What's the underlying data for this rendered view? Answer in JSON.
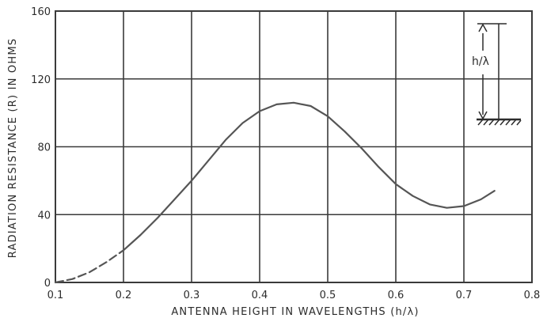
{
  "chart_data": {
    "type": "line",
    "title": "",
    "xlabel": "ANTENNA HEIGHT IN WAVELENGTHS (h/λ)",
    "ylabel": "RADIATION RESISTANCE (R) IN OHMS",
    "xlim": [
      0.1,
      0.8
    ],
    "ylim": [
      0,
      160
    ],
    "x_ticks": [
      "0.1",
      "0.2",
      "0.3",
      "0.4",
      "0.5",
      "0.6",
      "0.7",
      "0.8"
    ],
    "y_ticks": [
      "0",
      "40",
      "80",
      "120",
      "160"
    ],
    "grid": true,
    "series": [
      {
        "dashed_until_x": 0.2,
        "x": [
          0.1,
          0.125,
          0.15,
          0.175,
          0.2,
          0.225,
          0.25,
          0.275,
          0.3,
          0.325,
          0.35,
          0.375,
          0.4,
          0.425,
          0.45,
          0.475,
          0.5,
          0.525,
          0.55,
          0.575,
          0.6,
          0.625,
          0.65,
          0.675,
          0.7,
          0.725,
          0.745
        ],
        "y": [
          0,
          2,
          6,
          12,
          19,
          28,
          38,
          49,
          60,
          72,
          84,
          94,
          101,
          105,
          106,
          104,
          98,
          89,
          79,
          68,
          58,
          51,
          46,
          44,
          45,
          49,
          54
        ]
      }
    ],
    "inset": {
      "label": "h/λ"
    }
  }
}
